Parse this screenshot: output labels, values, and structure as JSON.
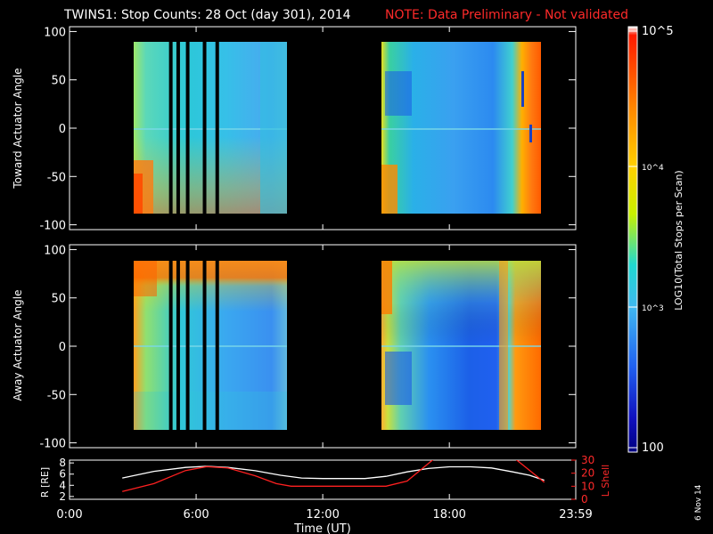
{
  "header": {
    "title": "TWINS1: Stop Counts: 28 Oct (day 301), 2014",
    "note": "NOTE: Data Preliminary - Not validated"
  },
  "colorbar": {
    "label": "LOG10(Total Stops per Scan)",
    "tick_labels": [
      "10^5",
      "10^4",
      "10^3",
      "100"
    ],
    "colors": [
      "#ffffff",
      "#ff1a00",
      "#ff8c00",
      "#ffd000",
      "#c8f000",
      "#20d8d0",
      "#40b8f0",
      "#2060f0",
      "#1010c0",
      "#000080"
    ]
  },
  "chart_data": [
    {
      "type": "heatmap",
      "ylabel": "Toward Actuator Angle",
      "ylim": [
        -105,
        105
      ],
      "y_ticks": [
        "100",
        "50",
        "0",
        "-50",
        "-100"
      ],
      "xlim": [
        0,
        23.99
      ],
      "data_intervals_ut_hours": [
        [
          2.8,
          10.1
        ],
        [
          14.9,
          22.8
        ]
      ],
      "black_gap_lines_ut_hours": [
        4.8,
        5.15,
        5.6,
        6.4,
        7.0
      ],
      "dominant_color": "cyan (~10^3)"
    },
    {
      "type": "heatmap",
      "ylabel": "Away Actuator Angle",
      "ylim": [
        -105,
        105
      ],
      "y_ticks": [
        "100",
        "50",
        "0",
        "-50",
        "-100"
      ],
      "xlim": [
        0,
        23.99
      ],
      "data_intervals_ut_hours": [
        [
          2.8,
          10.1
        ],
        [
          14.9,
          22.8
        ]
      ],
      "black_gap_lines_ut_hours": [
        4.8,
        5.15,
        5.6,
        6.4,
        7.0
      ],
      "dominant_color": "cyan / blue (~10^3)"
    },
    {
      "type": "line",
      "ylabel_left": "R [RE]",
      "ylabel_right": "L Shell",
      "xlabel": "Time (UT)",
      "x_ticks": [
        "0:00",
        "6:00",
        "12:00",
        "18:00",
        "23:59"
      ],
      "y_ticks_left": [
        "8",
        "6",
        "4",
        "2"
      ],
      "y_ticks_right": [
        "30",
        "20",
        "10",
        "0"
      ],
      "ylim_left": [
        1.5,
        8.5
      ],
      "ylim_right": [
        0,
        30
      ],
      "series": [
        {
          "color": "#ffffff",
          "x": [
            2.5,
            4,
            5.5,
            6.5,
            7.5,
            8.8,
            10,
            11,
            12,
            13,
            14,
            15,
            16,
            17,
            18,
            19,
            20,
            21,
            21.8,
            22.5
          ],
          "y": [
            5.3,
            6.5,
            7.2,
            7.4,
            7.2,
            6.6,
            5.8,
            5.3,
            5.2,
            5.2,
            5.2,
            5.6,
            6.4,
            7.0,
            7.3,
            7.3,
            7.1,
            6.4,
            5.8,
            4.9
          ]
        },
        {
          "color": "#ff2020",
          "x": [
            2.5,
            4,
            5.5,
            6.5,
            7.5,
            8.8,
            9.8,
            10.5,
            12,
            13.5,
            15,
            16,
            17.2,
            17.4,
            21,
            21.2,
            22.5
          ],
          "y": [
            6,
            12,
            22,
            25,
            24,
            18,
            12,
            10,
            10,
            10,
            10,
            14,
            30,
            32,
            32,
            30,
            13
          ]
        }
      ]
    }
  ],
  "footer": {
    "side_date": "6 Nov 14"
  }
}
